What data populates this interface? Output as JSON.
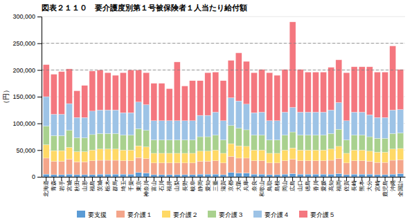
{
  "chart_data": {
    "type": "bar",
    "title": "図表２１１０　要介護度別第１号被保険者１人当たり給付額",
    "y_label": "（円）",
    "stacked": true,
    "grid": true,
    "legend": "bottom",
    "ylim": [
      0,
      300000
    ],
    "yticks": [
      0,
      {
        "value": 50000,
        "label": "50,000"
      },
      {
        "value": 100000,
        "label": "100,000"
      },
      {
        "value": 150000,
        "label": "150,000"
      },
      {
        "value": 200000,
        "label": "200,000"
      },
      {
        "value": 250000,
        "label": "250,000"
      },
      {
        "value": 300000,
        "label": "300,000"
      }
    ],
    "hlines": [
      200000,
      250000
    ],
    "categories": [
      "北海道",
      "青森",
      "岩手",
      "宮城",
      "秋田",
      "山形",
      "福島",
      "茨城",
      "栃木",
      "群馬",
      "埼玉",
      "千葉",
      "東京",
      "神奈川",
      "富山",
      "石川",
      "福井",
      "山梨",
      "長野",
      "岐阜",
      "静岡",
      "愛知",
      "三重",
      "滋賀",
      "京都",
      "大阪",
      "兵庫",
      "奈良",
      "和歌山",
      "鳥取",
      "島根",
      "岡山",
      "広島",
      "山口",
      "徳島",
      "香川",
      "愛媛",
      "高知",
      "福岡",
      "佐賀",
      "長崎",
      "熊本",
      "大分",
      "宮崎",
      "鹿児島",
      "沖縄",
      "全国計"
    ],
    "series": [
      {
        "name": "要支援",
        "color": "#5b9bd5",
        "values": [
          5000,
          4000,
          4000,
          5000,
          4000,
          4000,
          4000,
          5000,
          5000,
          5000,
          5000,
          5000,
          8000,
          7000,
          4000,
          4000,
          4000,
          4000,
          4000,
          4000,
          5000,
          5000,
          5000,
          4000,
          8000,
          7000,
          7000,
          5000,
          5000,
          4000,
          4000,
          5000,
          6000,
          5000,
          5000,
          5000,
          5000,
          5000,
          6000,
          4000,
          5000,
          5000,
          5000,
          4000,
          4000,
          5000,
          6000
        ]
      },
      {
        "name": "要介護１",
        "color": "#f4a58a",
        "values": [
          30000,
          25000,
          25000,
          28000,
          24000,
          24000,
          26000,
          26000,
          26000,
          26000,
          25000,
          25000,
          28000,
          27000,
          22000,
          22000,
          22000,
          22000,
          22000,
          22000,
          24000,
          24000,
          25000,
          22000,
          30000,
          28000,
          28000,
          25000,
          25000,
          22000,
          22000,
          25000,
          27000,
          25000,
          25000,
          25000,
          25000,
          26000,
          28000,
          22000,
          25000,
          25000,
          24000,
          23000,
          23000,
          26000,
          26000
        ]
      },
      {
        "name": "要介護２",
        "color": "#ffd966",
        "values": [
          25000,
          20000,
          20000,
          22000,
          19000,
          19000,
          20000,
          21000,
          21000,
          21000,
          20000,
          20000,
          22000,
          22000,
          18000,
          18000,
          18000,
          18000,
          18000,
          18000,
          19000,
          19000,
          20000,
          18000,
          24000,
          23000,
          22000,
          20000,
          20000,
          18000,
          18000,
          20000,
          21000,
          20000,
          20000,
          20000,
          20000,
          21000,
          23000,
          18000,
          20000,
          20000,
          19000,
          19000,
          19000,
          21000,
          21000
        ]
      },
      {
        "name": "要介護３",
        "color": "#a9d18e",
        "values": [
          35000,
          28000,
          28000,
          32000,
          26000,
          26000,
          29000,
          29000,
          29000,
          29000,
          28000,
          28000,
          32000,
          31000,
          25000,
          25000,
          25000,
          25000,
          25000,
          25000,
          27000,
          27000,
          28000,
          25000,
          34000,
          33000,
          31000,
          28000,
          28000,
          25000,
          25000,
          28000,
          30000,
          28000,
          28000,
          28000,
          28000,
          29000,
          32000,
          25000,
          28000,
          28000,
          27000,
          26000,
          26000,
          29000,
          29000
        ]
      },
      {
        "name": "要介護４",
        "color": "#9dc3e6",
        "values": [
          55000,
          40000,
          40000,
          50000,
          38000,
          38000,
          44000,
          44000,
          44000,
          44000,
          42000,
          42000,
          50000,
          48000,
          36000,
          36000,
          36000,
          36000,
          36000,
          36000,
          40000,
          40000,
          43000,
          36000,
          52000,
          51000,
          48000,
          42000,
          43000,
          36000,
          36000,
          43000,
          46000,
          43000,
          43000,
          43000,
          43000,
          44000,
          50000,
          36000,
          43000,
          43000,
          41000,
          39000,
          39000,
          44000,
          44000
        ]
      },
      {
        "name": "要介護５",
        "color": "#f4777f",
        "values": [
          60000,
          75000,
          80000,
          65000,
          50000,
          60000,
          75000,
          75000,
          70000,
          65000,
          75000,
          80000,
          60000,
          60000,
          70000,
          70000,
          60000,
          110000,
          65000,
          75000,
          65000,
          80000,
          75000,
          75000,
          70000,
          90000,
          80000,
          75000,
          80000,
          90000,
          85000,
          80000,
          160000,
          80000,
          75000,
          75000,
          75000,
          80000,
          80000,
          90000,
          85000,
          85000,
          90000,
          85000,
          85000,
          120000,
          75000
        ]
      }
    ]
  }
}
